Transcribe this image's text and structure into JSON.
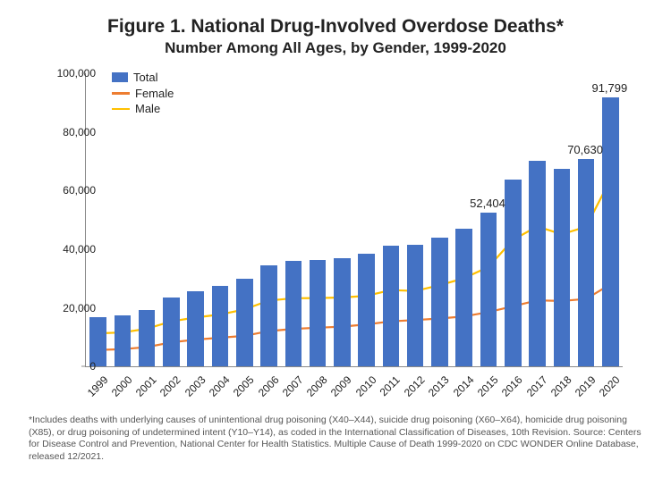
{
  "title": "Figure 1. National Drug-Involved Overdose Deaths*",
  "subtitle": "Number Among All Ages, by Gender, 1999-2020",
  "chart": {
    "type": "bar+line",
    "years": [
      "1999",
      "2000",
      "2001",
      "2002",
      "2003",
      "2004",
      "2005",
      "2006",
      "2007",
      "2008",
      "2009",
      "2010",
      "2011",
      "2012",
      "2013",
      "2014",
      "2015",
      "2016",
      "2017",
      "2018",
      "2019",
      "2020"
    ],
    "total_values": [
      16849,
      17415,
      19394,
      23518,
      25785,
      27424,
      29813,
      34425,
      36010,
      36450,
      37004,
      38329,
      41340,
      41502,
      43982,
      47055,
      52404,
      63632,
      70237,
      67367,
      70630,
      91799
    ],
    "female_values": [
      5591,
      5852,
      6562,
      8184,
      9130,
      9749,
      10400,
      11998,
      12779,
      13160,
      13523,
      14287,
      15323,
      15800,
      16300,
      17000,
      18500,
      20500,
      22500,
      22300,
      23000,
      28000
    ],
    "male_values": [
      11258,
      11563,
      12832,
      15334,
      16655,
      17675,
      19413,
      22427,
      23231,
      23290,
      23481,
      24042,
      26017,
      25702,
      27682,
      30055,
      33904,
      43132,
      47737,
      45067,
      47630,
      63799
    ],
    "bar_color": "#4472c4",
    "female_color": "#ed7d31",
    "male_color": "#ffc000",
    "ylim": [
      0,
      100000
    ],
    "ytick_step": 20000,
    "bar_width_ratio": 0.68,
    "line_width": 2.2,
    "background": "#ffffff",
    "axis_color": "#888888",
    "tick_fontsize": 12,
    "title_fontsize": 21,
    "subtitle_fontsize": 17
  },
  "legend": {
    "items": [
      {
        "label": "Total",
        "kind": "bar",
        "color": "#4472c4"
      },
      {
        "label": "Female",
        "kind": "line",
        "color": "#ed7d31"
      },
      {
        "label": "Male",
        "kind": "line",
        "color": "#ffc000"
      }
    ]
  },
  "data_labels": [
    {
      "year": "2015",
      "text": "52,404"
    },
    {
      "year": "2019",
      "text": "70,630"
    },
    {
      "year": "2020",
      "text": "91,799"
    }
  ],
  "footnote": "*Includes deaths with underlying causes of unintentional drug poisoning (X40–X44), suicide drug poisoning (X60–X64), homicide drug poisoning (X85), or drug poisoning of undetermined intent (Y10–Y14), as coded in the International Classification of Diseases, 10th Revision. Source: Centers for Disease Control and Prevention, National Center for Health Statistics. Multiple Cause of Death 1999-2020 on CDC WONDER Online Database, released 12/2021."
}
